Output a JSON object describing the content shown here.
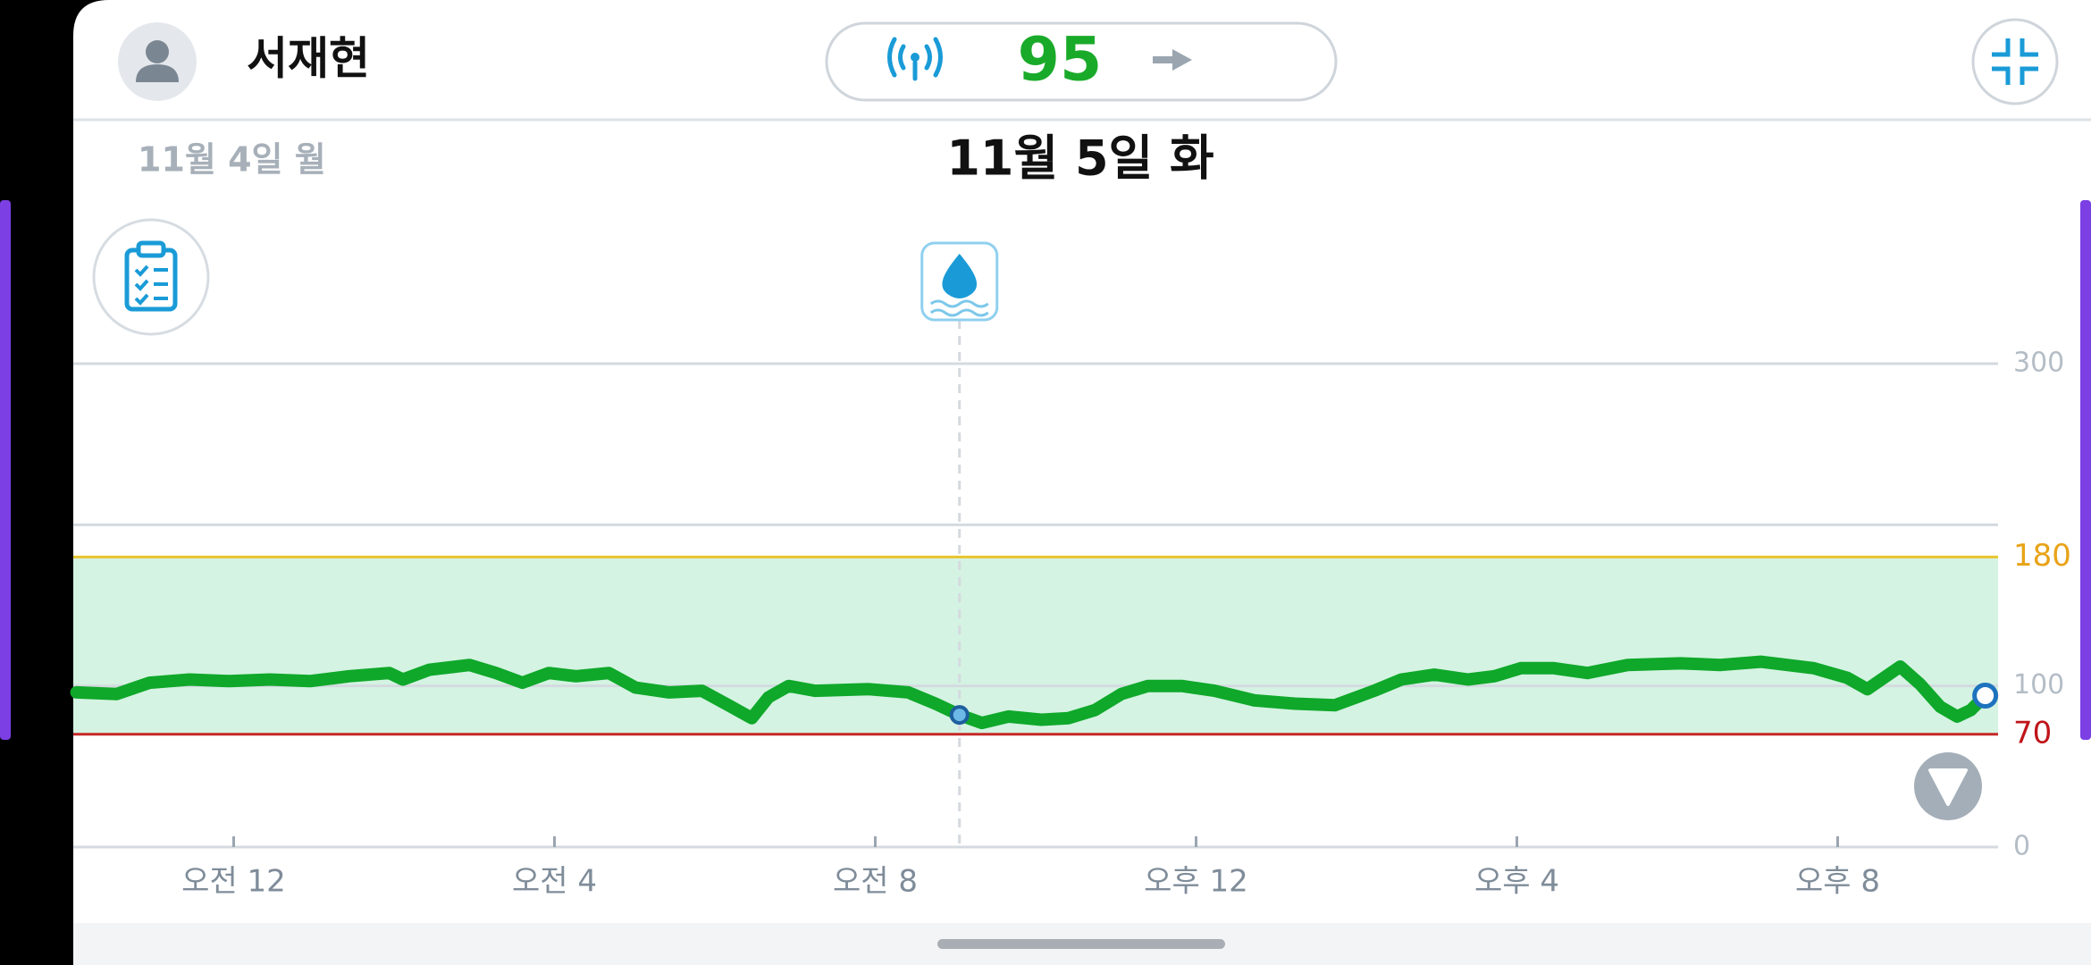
{
  "header": {
    "user_name": "서재현",
    "current_reading": 95
  },
  "dates": {
    "previous": "11월 4일 월",
    "current": "11월 5일 화"
  },
  "chart_data": {
    "type": "line",
    "x": [
      -1.96,
      -1.46,
      -1.05,
      -0.55,
      -0.05,
      0.45,
      0.95,
      1.44,
      1.94,
      2.11,
      2.44,
      2.94,
      3.27,
      3.6,
      3.93,
      4.27,
      4.68,
      5.01,
      5.43,
      5.84,
      6.17,
      6.46,
      6.67,
      6.92,
      7.25,
      7.92,
      8.41,
      8.75,
      9.05,
      9.33,
      9.66,
      10.07,
      10.41,
      10.74,
      11.07,
      11.4,
      11.82,
      12.23,
      12.73,
      13.23,
      13.73,
      14.22,
      14.56,
      14.97,
      15.39,
      15.72,
      16.05,
      16.46,
      16.88,
      17.38,
      18.04,
      18.54,
      19.04,
      19.7,
      20.12,
      20.37,
      20.78,
      21.03,
      21.28,
      21.49,
      21.66,
      21.84
    ],
    "values": [
      96,
      95,
      102,
      104,
      103,
      104,
      103,
      106,
      108,
      104,
      110,
      113,
      108,
      102,
      108,
      106,
      108,
      99,
      96,
      97,
      88,
      80,
      93,
      100,
      97,
      98,
      96,
      89,
      82,
      77,
      81,
      79,
      80,
      85,
      95,
      100,
      100,
      97,
      91,
      89,
      88,
      97,
      104,
      107,
      104,
      106,
      111,
      111,
      108,
      113,
      114,
      113,
      115,
      111,
      105,
      98,
      112,
      101,
      87,
      81,
      85,
      94
    ],
    "color": "#0fa82a",
    "xlim": [
      -2,
      22
    ],
    "xticks": [
      {
        "value": 0,
        "label": "오전 12"
      },
      {
        "value": 4,
        "label": "오전 4"
      },
      {
        "value": 8,
        "label": "오전 8"
      },
      {
        "value": 12,
        "label": "오후 12"
      },
      {
        "value": 16,
        "label": "오후 4"
      },
      {
        "value": 20,
        "label": "오후 8"
      }
    ],
    "ylim": [
      0,
      300
    ],
    "yticks": [
      0,
      100,
      300
    ],
    "ygrid": [
      0,
      100,
      200,
      300
    ],
    "target_range": [
      70,
      180
    ],
    "low_color": "#c62828",
    "high_color": "#e8c530",
    "low_label_color": "#c0151a",
    "high_label_color": "#e8a317",
    "range_color": "#d4f3e2"
  }
}
